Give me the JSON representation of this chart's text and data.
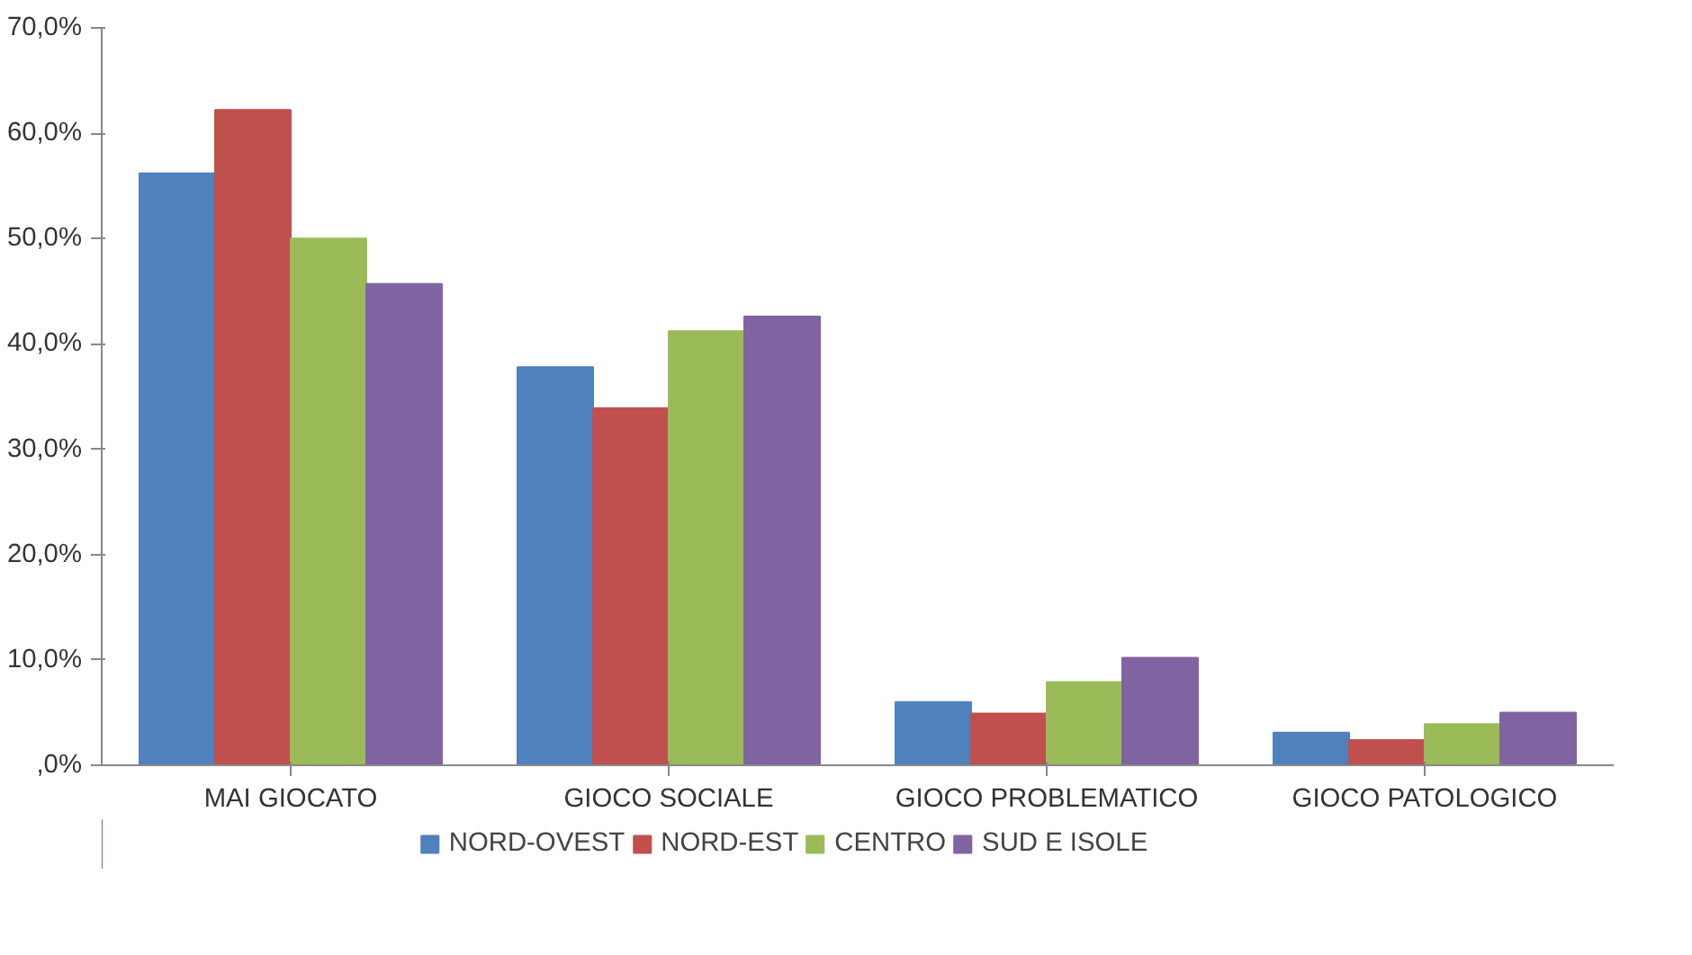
{
  "chart_data": {
    "type": "bar",
    "categories": [
      "MAI GIOCATO",
      "GIOCO SOCIALE",
      "GIOCO PROBLEMATICO",
      "GIOCO PATOLOGICO"
    ],
    "series": [
      {
        "name": "NORD-OVEST",
        "color": "#4f81bd",
        "values": [
          56.2,
          37.8,
          6.0,
          3.1
        ]
      },
      {
        "name": "NORD-EST",
        "color": "#c0504d",
        "values": [
          62.2,
          33.9,
          4.9,
          2.4
        ]
      },
      {
        "name": "CENTRO",
        "color": "#9bbb59",
        "values": [
          50.0,
          41.2,
          7.9,
          3.9
        ]
      },
      {
        "name": "SUD E ISOLE",
        "color": "#8064a2",
        "values": [
          45.7,
          42.6,
          10.2,
          5.0
        ]
      }
    ],
    "ylim": [
      0,
      70
    ],
    "yticks": [
      {
        "value": 0,
        "label": ",0%"
      },
      {
        "value": 10,
        "label": "10,0%"
      },
      {
        "value": 20,
        "label": "20,0%"
      },
      {
        "value": 30,
        "label": "30,0%"
      },
      {
        "value": 40,
        "label": "40,0%"
      },
      {
        "value": 50,
        "label": "50,0%"
      },
      {
        "value": 60,
        "label": "60,0%"
      },
      {
        "value": 70,
        "label": "70,0%"
      }
    ],
    "grid": false,
    "legend": "bottom"
  }
}
